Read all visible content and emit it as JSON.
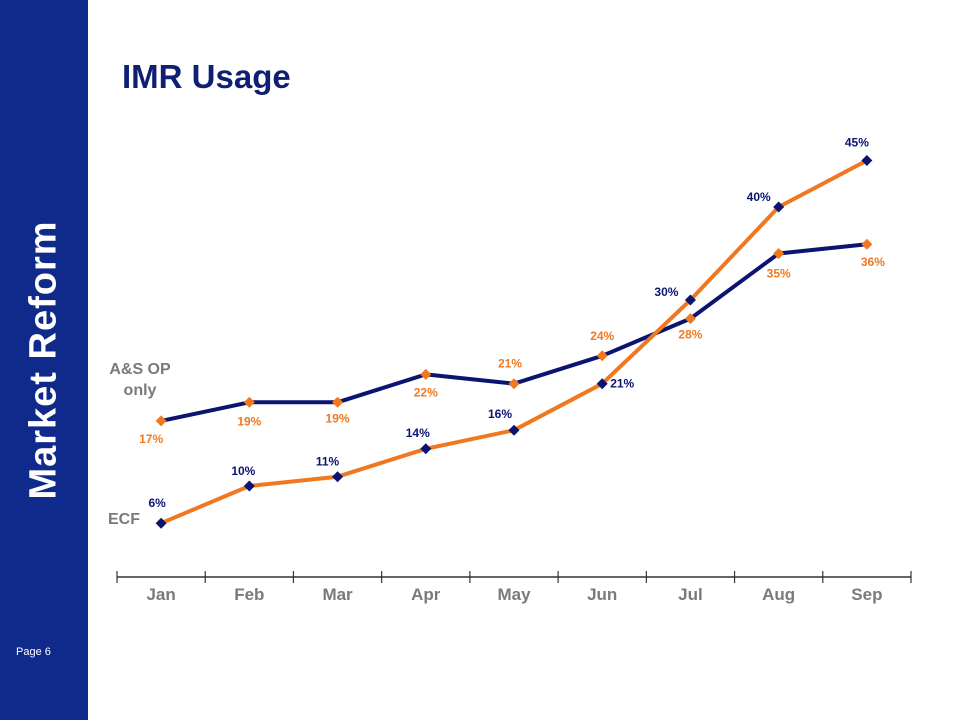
{
  "sidebar": {
    "brand": "Market Reform",
    "page": "Page 6"
  },
  "colors": {
    "sidebar": "#0f2a8a",
    "navy": "#0b1470",
    "orange": "#f07820",
    "axis": "#333333",
    "label": "#7a7a7a"
  },
  "chart_data": {
    "type": "line",
    "title": "IMR Usage",
    "xlabel": "",
    "ylabel": "",
    "categories": [
      "Jan",
      "Feb",
      "Mar",
      "Apr",
      "May",
      "Jun",
      "Jul",
      "Aug",
      "Sep"
    ],
    "ylim": [
      0,
      50
    ],
    "grid": false,
    "series": [
      {
        "name": "A&S OP only",
        "line_color": "navy",
        "marker_color": "orange",
        "values": [
          17,
          19,
          19,
          22,
          21,
          24,
          28,
          35,
          36
        ],
        "labels": [
          "17%",
          "19%",
          "19%",
          "22%",
          "21%",
          "24%",
          "28%",
          "35%",
          "36%"
        ]
      },
      {
        "name": "ECF",
        "line_color": "orange",
        "marker_color": "navy",
        "values": [
          6,
          10,
          11,
          14,
          16,
          21,
          30,
          40,
          45
        ],
        "labels": [
          "6%",
          "10%",
          "11%",
          "14%",
          "16%",
          "21%",
          "30%",
          "40%",
          "45%"
        ]
      }
    ]
  }
}
